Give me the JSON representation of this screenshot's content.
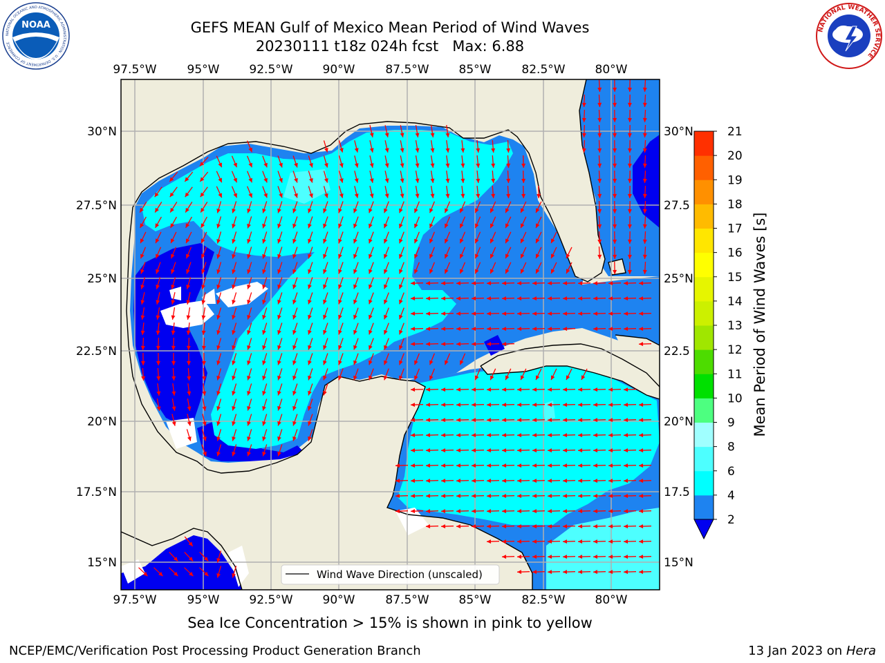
{
  "title": {
    "line1": "GEFS MEAN Gulf of Mexico Mean Period of Wind Waves",
    "line2": "20230111 t18z 024h fcst   Max: 6.88"
  },
  "map": {
    "lon_labels": [
      "97.5°W",
      "95°W",
      "92.5°W",
      "90°W",
      "87.5°W",
      "85°W",
      "82.5°W",
      "80°W"
    ],
    "lat_labels": [
      "30°N",
      "27.5°N",
      "25°N",
      "22.5°N",
      "20°N",
      "17.5°N",
      "15°N"
    ],
    "lat_labels_right": [
      "30°N",
      "27.5",
      "25°N",
      "22.5",
      "20°N",
      "17.5",
      "15°N"
    ],
    "legend_label": "Wind Wave Direction (unscaled)",
    "colors": {
      "land": "#efeddc",
      "ocean_2_4": "#1e83f0",
      "ocean_0_2": "#0000f0",
      "ocean_4_6": "#00ffff",
      "ocean_6_8": "#4dffff",
      "arrow": "#ff0000"
    }
  },
  "colorbar": {
    "label": "Mean Period of Wind Waves [s]",
    "ticks": [
      "2",
      "4",
      "6",
      "8",
      "9",
      "10",
      "11",
      "12",
      "13",
      "14",
      "15",
      "16",
      "17",
      "18",
      "19",
      "20",
      "21"
    ],
    "colors": [
      "#1e83f0",
      "#00ffff",
      "#4dffff",
      "#a0ffff",
      "#4dff80",
      "#00e000",
      "#4ddc00",
      "#a0e600",
      "#ccf000",
      "#e6f500",
      "#ffff00",
      "#ffe600",
      "#ffbb00",
      "#ff9000",
      "#ff6000",
      "#ff3000"
    ]
  },
  "caption": "Sea Ice Concentration > 15% is shown in pink to yellow",
  "footer": {
    "left": "NCEP/EMC/Verification Post Processing Product Generation Branch",
    "right_prefix": "13 Jan 2023 on ",
    "right_host": "Hera"
  },
  "logos": {
    "noaa_text": "NOAA",
    "noaa_ring": "NATIONAL OCEANIC AND ATMOSPHERIC ADMINISTRATION · U.S. DEPARTMENT OF COMMERCE",
    "nws_ring": "NATIONAL WEATHER SERVICE"
  }
}
